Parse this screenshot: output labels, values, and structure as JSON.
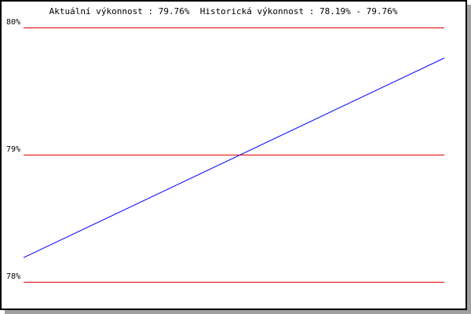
{
  "chart_data": {
    "type": "line",
    "title": "Aktuální výkonnost : 79.76%  Historická výkonnost : 78.19% - 79.76%",
    "xlabel": "",
    "ylabel": "",
    "ylim": [
      78,
      80
    ],
    "yticks": [
      "78%",
      "79%",
      "80%"
    ],
    "ytick_values": [
      78,
      79,
      80
    ],
    "grid": true,
    "series": [
      {
        "values": [
          78.19,
          79.76
        ],
        "color": "#0000ff"
      }
    ],
    "grid_color": "#e00000"
  }
}
